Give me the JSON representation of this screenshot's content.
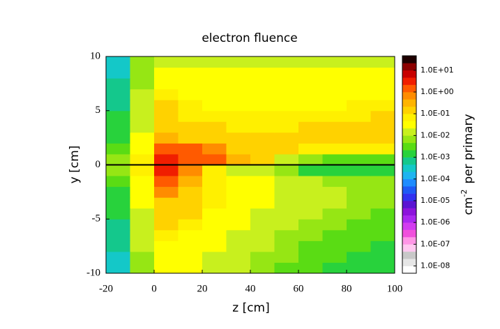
{
  "chart_data": {
    "type": "heatmap",
    "title": "electron fluence",
    "xlabel": "z  [cm]",
    "ylabel": "y  [cm]",
    "colorbar_label": {
      "unit": "cm",
      "exponent": "-2",
      "text": "per  primary"
    },
    "x": [
      -15,
      -5,
      5,
      15,
      25,
      35,
      45,
      55,
      65,
      75,
      85,
      95
    ],
    "y": [
      -9.5,
      -8.5,
      -7.5,
      -6.5,
      -5.5,
      -4.5,
      -3.5,
      -2.5,
      -1.5,
      -0.5,
      0.5,
      1.5,
      2.5,
      3.5,
      4.5,
      5.5,
      6.5,
      7.5,
      8.5,
      9.5
    ],
    "values": [
      [
        0.0003,
        0.006,
        0.035,
        0.025,
        0.018,
        0.01,
        0.007,
        0.004,
        0.003,
        0.002,
        0.002,
        0.002
      ],
      [
        0.0004,
        0.008,
        0.04,
        0.03,
        0.02,
        0.012,
        0.008,
        0.005,
        0.004,
        0.003,
        0.002,
        0.002
      ],
      [
        0.0005,
        0.01,
        0.045,
        0.035,
        0.025,
        0.015,
        0.01,
        0.006,
        0.004,
        0.003,
        0.003,
        0.002
      ],
      [
        0.0006,
        0.012,
        0.06,
        0.04,
        0.03,
        0.02,
        0.012,
        0.008,
        0.005,
        0.004,
        0.003,
        0.003
      ],
      [
        0.0008,
        0.015,
        0.1,
        0.05,
        0.035,
        0.025,
        0.015,
        0.01,
        0.007,
        0.005,
        0.004,
        0.003
      ],
      [
        0.001,
        0.02,
        0.15,
        0.1,
        0.04,
        0.03,
        0.02,
        0.015,
        0.01,
        0.007,
        0.005,
        0.004
      ],
      [
        0.0015,
        0.025,
        0.2,
        0.15,
        0.05,
        0.035,
        0.025,
        0.02,
        0.012,
        0.01,
        0.007,
        0.005
      ],
      [
        0.002,
        0.03,
        0.5,
        0.2,
        0.06,
        0.04,
        0.03,
        0.02,
        0.015,
        0.01,
        0.008,
        0.006
      ],
      [
        0.003,
        0.04,
        2,
        0.3,
        0.08,
        0.04,
        0.03,
        0.02,
        0.01,
        0.008,
        0.006,
        0.005
      ],
      [
        0.005,
        0.05,
        4,
        0.5,
        0.05,
        0.02,
        0.01,
        0.005,
        0.001,
        0.001,
        0.001,
        0.001
      ],
      [
        0.005,
        0.05,
        3,
        2,
        1.2,
        0.3,
        0.1,
        0.01,
        0.005,
        0.004,
        0.004,
        0.004
      ],
      [
        0.003,
        0.03,
        1.5,
        1.2,
        0.5,
        0.2,
        0.15,
        0.1,
        0.08,
        0.06,
        0.05,
        0.05
      ],
      [
        0.002,
        0.025,
        0.3,
        0.2,
        0.15,
        0.15,
        0.15,
        0.15,
        0.15,
        0.12,
        0.12,
        0.1
      ],
      [
        0.0015,
        0.02,
        0.2,
        0.15,
        0.1,
        0.07,
        0.07,
        0.08,
        0.12,
        0.15,
        0.15,
        0.15
      ],
      [
        0.001,
        0.015,
        0.15,
        0.08,
        0.05,
        0.05,
        0.05,
        0.05,
        0.06,
        0.07,
        0.08,
        0.12
      ],
      [
        0.0008,
        0.012,
        0.1,
        0.05,
        0.04,
        0.04,
        0.04,
        0.04,
        0.04,
        0.045,
        0.05,
        0.05
      ],
      [
        0.0006,
        0.01,
        0.06,
        0.04,
        0.035,
        0.035,
        0.035,
        0.035,
        0.035,
        0.035,
        0.04,
        0.04
      ],
      [
        0.0005,
        0.008,
        0.04,
        0.035,
        0.03,
        0.03,
        0.03,
        0.03,
        0.03,
        0.03,
        0.03,
        0.03
      ],
      [
        0.0004,
        0.006,
        0.03,
        0.03,
        0.025,
        0.025,
        0.025,
        0.025,
        0.025,
        0.025,
        0.025,
        0.025
      ],
      [
        0.0003,
        0.005,
        0.02,
        0.02,
        0.02,
        0.02,
        0.02,
        0.02,
        0.02,
        0.02,
        0.02,
        0.02
      ]
    ],
    "xlim": [
      -20,
      100
    ],
    "xticks": [
      -20,
      0,
      20,
      40,
      60,
      80,
      100
    ],
    "ylim": [
      -10,
      10
    ],
    "yticks": [
      -10,
      -5,
      0,
      5,
      10
    ],
    "zlim": [
      4.64e-09,
      46.4
    ],
    "colorbar_log": true,
    "colorbar_ticks": [
      {
        "value": 1e-08,
        "label": "1.0E-08"
      },
      {
        "value": 1e-07,
        "label": "1.0E-07"
      },
      {
        "value": 1e-06,
        "label": "1.0E-06"
      },
      {
        "value": 1e-05,
        "label": "1.0E-05"
      },
      {
        "value": 0.0001,
        "label": "1.0E-04"
      },
      {
        "value": 0.001,
        "label": "1.0E-03"
      },
      {
        "value": 0.01,
        "label": "1.0E-02"
      },
      {
        "value": 0.1,
        "label": "1.0E-01"
      },
      {
        "value": 1,
        "label": "1.0E+00"
      },
      {
        "value": 10,
        "label": "1.0E+01"
      }
    ],
    "colormap": [
      "#ffffff",
      "#e6e6e6",
      "#c8c8c8",
      "#ffc8f0",
      "#ff96e6",
      "#f050dc",
      "#d23cf0",
      "#aa28f0",
      "#8c14dc",
      "#5a14d2",
      "#3232f0",
      "#1e5af5",
      "#1e8cff",
      "#1eb4f0",
      "#14c8c8",
      "#14c88c",
      "#28d23c",
      "#5adc14",
      "#96e614",
      "#c8f01e",
      "#ffff00",
      "#fff000",
      "#ffd200",
      "#ffb400",
      "#ff8c00",
      "#ff5a00",
      "#f01e00",
      "#c80000",
      "#8c0000",
      "#1e0000"
    ]
  }
}
